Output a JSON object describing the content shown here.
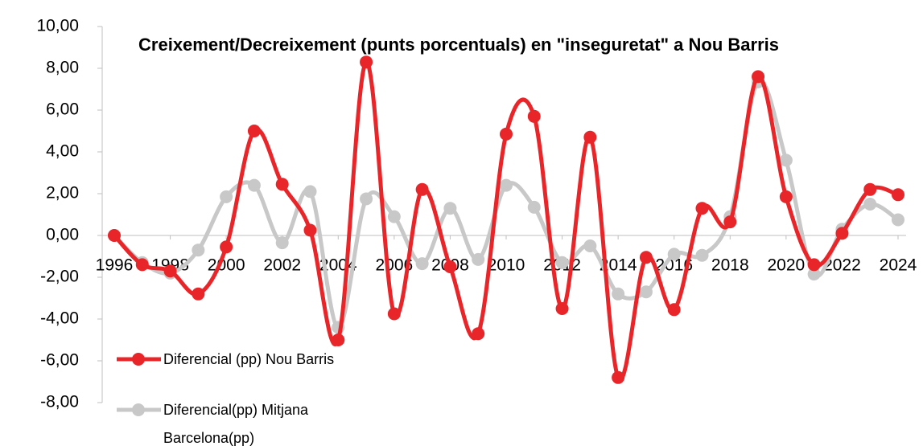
{
  "chart_data": {
    "type": "line",
    "title": "Creixement/Decreixement (punts porcentuals)  en \"inseguretat\" a Nou Barris",
    "x": [
      1996,
      1997,
      1998,
      1999,
      2000,
      2001,
      2002,
      2003,
      2004,
      2005,
      2006,
      2007,
      2008,
      2009,
      2010,
      2011,
      2012,
      2013,
      2014,
      2015,
      2016,
      2017,
      2018,
      2019,
      2020,
      2021,
      2022,
      2023,
      2024
    ],
    "series": [
      {
        "name": "Diferencial (pp)  Nou Barris",
        "color": "#e8262a",
        "values": [
          0,
          -1.4,
          -1.7,
          -2.8,
          -0.55,
          5.0,
          2.45,
          0.25,
          -5.0,
          8.3,
          -3.75,
          2.2,
          -1.5,
          -4.7,
          4.85,
          5.7,
          -3.5,
          4.7,
          -6.8,
          -1.05,
          -3.55,
          1.3,
          0.65,
          7.6,
          1.85,
          -1.4,
          0.1,
          2.2,
          1.95
        ]
      },
      {
        "name": "Diferencial(pp) Mitjana Barcelona(pp)",
        "color": "#c8c8c8",
        "values": [
          0,
          -1.3,
          -1.8,
          -0.7,
          1.85,
          2.4,
          -0.35,
          2.1,
          -4.4,
          1.75,
          0.9,
          -1.35,
          1.3,
          -1.15,
          2.4,
          1.35,
          -1.3,
          -0.5,
          -2.8,
          -2.7,
          -0.9,
          -0.95,
          0.9,
          7.35,
          3.6,
          -1.85,
          0.3,
          1.5,
          0.75
        ]
      }
    ],
    "xlim": [
      1996,
      2024
    ],
    "xticks": [
      1996,
      1998,
      2000,
      2002,
      2004,
      2006,
      2008,
      2010,
      2012,
      2014,
      2016,
      2018,
      2020,
      2022,
      2024
    ],
    "ylim": [
      -8,
      10
    ],
    "yticks": [
      {
        "value": -8,
        "label": "-8,00"
      },
      {
        "value": -6,
        "label": "-6,00"
      },
      {
        "value": -4,
        "label": "-4,00"
      },
      {
        "value": -2,
        "label": "-2,00"
      },
      {
        "value": 0,
        "label": "0,00"
      },
      {
        "value": 2,
        "label": "2,00"
      },
      {
        "value": 4,
        "label": "4,00"
      },
      {
        "value": 6,
        "label": "6,00"
      },
      {
        "value": 8,
        "label": "8,00"
      },
      {
        "value": 10,
        "label": "10,00"
      }
    ],
    "legend": "lower left",
    "smooth": true
  }
}
